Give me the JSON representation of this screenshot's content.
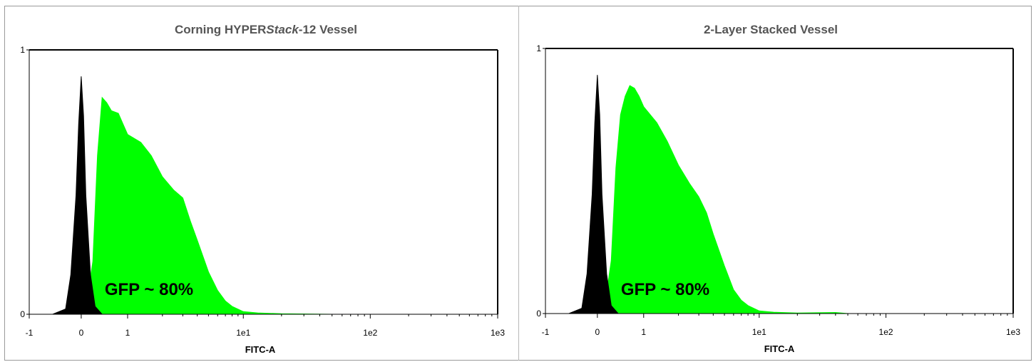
{
  "chart_data": [
    {
      "type": "area",
      "title_parts": [
        {
          "text": "Corning HYPER",
          "italic": false
        },
        {
          "text": "Stack",
          "italic": true
        },
        {
          "text": "-12 Vessel",
          "italic": false
        }
      ],
      "xlabel": "FITC-A",
      "ylabel": "",
      "x_scale": "biexponential",
      "x_ticks": [
        "-1",
        "0",
        "1",
        "1e1",
        "1e2",
        "1e3"
      ],
      "y_ticks": [
        "0",
        "1"
      ],
      "ylim": [
        0,
        1
      ],
      "annotation": "GFP ~ 80%",
      "series": [
        {
          "color": "#000000",
          "x": [
            -0.55,
            -0.3,
            -0.2,
            -0.1,
            -0.05,
            0,
            0.05,
            0.1,
            0.2,
            0.3,
            0.45
          ],
          "y": [
            0,
            0.02,
            0.15,
            0.45,
            0.72,
            0.9,
            0.75,
            0.45,
            0.15,
            0.03,
            0
          ]
        },
        {
          "color": "#00ff00",
          "x": [
            -0.2,
            0.1,
            0.25,
            0.35,
            0.45,
            0.55,
            0.65,
            0.8,
            0.9,
            1,
            1.3,
            1.6,
            2,
            2.5,
            3,
            3.5,
            4,
            5,
            6,
            7,
            8,
            10,
            13,
            20,
            50
          ],
          "y": [
            0,
            0.02,
            0.2,
            0.6,
            0.82,
            0.8,
            0.77,
            0.76,
            0.72,
            0.68,
            0.65,
            0.6,
            0.52,
            0.47,
            0.44,
            0.35,
            0.28,
            0.16,
            0.09,
            0.05,
            0.03,
            0.01,
            0.005,
            0.002,
            0
          ]
        }
      ]
    },
    {
      "type": "area",
      "title_parts": [
        {
          "text": "2-Layer Stacked Vessel",
          "italic": false
        }
      ],
      "xlabel": "FITC-A",
      "ylabel": "",
      "x_scale": "biexponential",
      "x_ticks": [
        "-1",
        "0",
        "1",
        "1e1",
        "1e2",
        "1e3"
      ],
      "y_ticks": [
        "0",
        "1"
      ],
      "ylim": [
        0,
        1
      ],
      "annotation": "GFP ~ 80%",
      "series": [
        {
          "color": "#000000",
          "x": [
            -0.55,
            -0.3,
            -0.2,
            -0.1,
            -0.05,
            0,
            0.05,
            0.1,
            0.2,
            0.3,
            0.45
          ],
          "y": [
            0,
            0.02,
            0.15,
            0.45,
            0.72,
            0.9,
            0.75,
            0.45,
            0.15,
            0.03,
            0
          ]
        },
        {
          "color": "#00ff00",
          "x": [
            -0.1,
            0.15,
            0.3,
            0.4,
            0.5,
            0.6,
            0.7,
            0.8,
            0.9,
            1,
            1.3,
            1.6,
            2,
            2.5,
            3,
            3.5,
            4,
            5,
            6,
            7,
            8,
            10,
            13,
            20,
            40,
            50
          ],
          "y": [
            0,
            0.02,
            0.2,
            0.55,
            0.75,
            0.82,
            0.86,
            0.85,
            0.82,
            0.78,
            0.72,
            0.65,
            0.56,
            0.49,
            0.44,
            0.38,
            0.3,
            0.18,
            0.09,
            0.05,
            0.03,
            0.01,
            0.005,
            0.002,
            0.004,
            0
          ]
        }
      ]
    }
  ]
}
